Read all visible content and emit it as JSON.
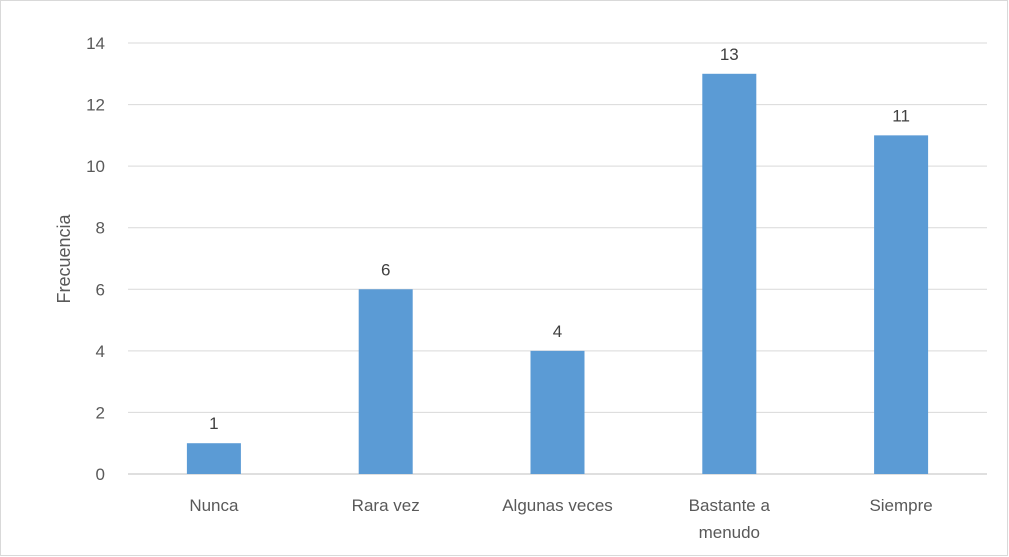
{
  "chart_data": {
    "type": "bar",
    "categories": [
      [
        "Nunca"
      ],
      [
        "Rara vez"
      ],
      [
        "Algunas veces"
      ],
      [
        "Bastante a",
        "menudo"
      ],
      [
        "Siempre"
      ]
    ],
    "values": [
      1,
      6,
      4,
      13,
      11
    ],
    "data_labels": [
      "1",
      "6",
      "4",
      "13",
      "11"
    ],
    "title": "",
    "xlabel": "",
    "ylabel": "Frecuencia",
    "ylim": [
      0,
      14
    ],
    "yticks": [
      0,
      2,
      4,
      6,
      8,
      10,
      12,
      14
    ],
    "grid": true,
    "legend": "none",
    "bar_color": "#5b9bd5"
  }
}
